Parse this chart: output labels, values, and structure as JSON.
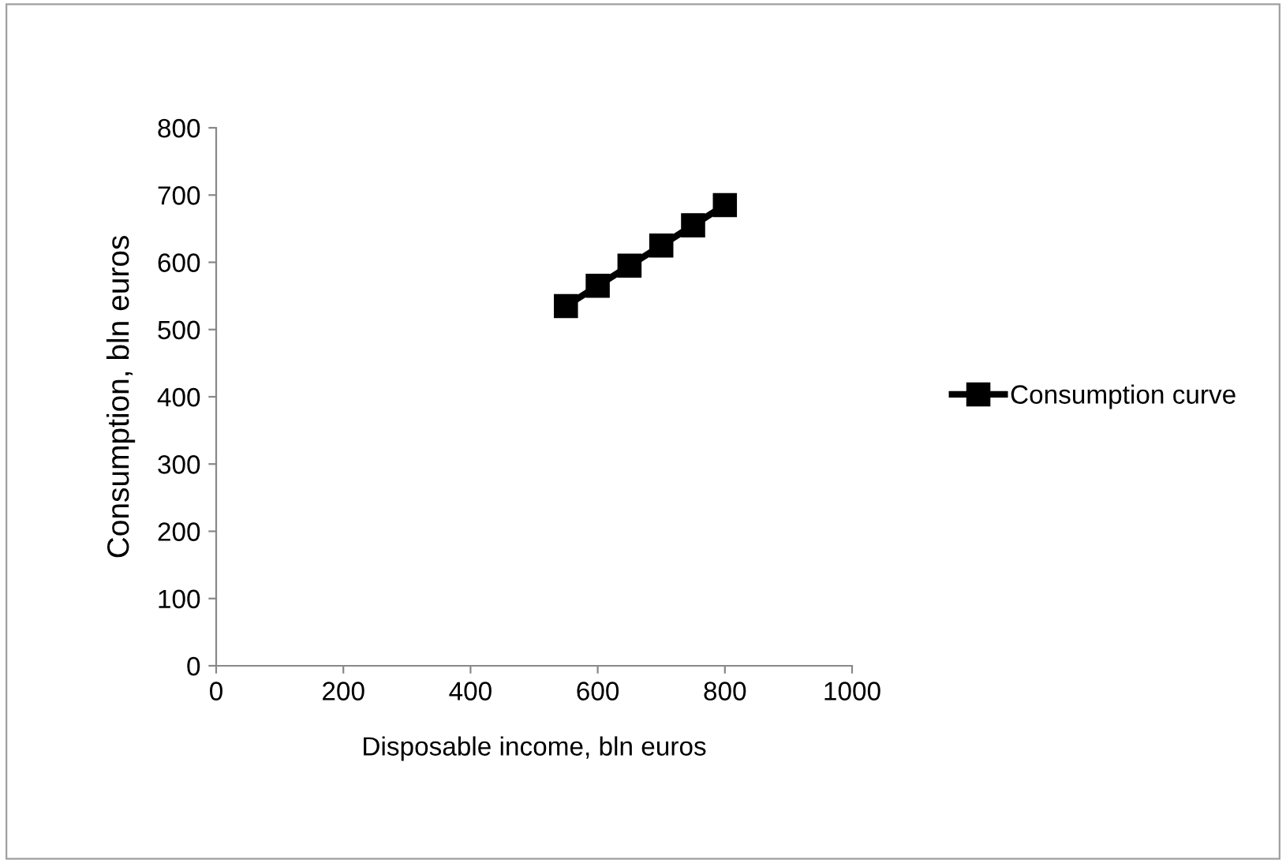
{
  "chart_data": {
    "type": "line",
    "xlabel": "Disposable income, bln euros",
    "ylabel": "Consumption, bln euros",
    "x": [
      550,
      600,
      650,
      700,
      750,
      800
    ],
    "series": [
      {
        "name": "Consumption curve",
        "color": "#000000",
        "values": [
          535,
          565,
          595,
          625,
          655,
          685
        ]
      }
    ],
    "xlim": [
      0,
      1000
    ],
    "xticks": [
      0,
      200,
      400,
      600,
      800,
      1000
    ],
    "ylim": [
      0,
      800
    ],
    "yticks": [
      0,
      100,
      200,
      300,
      400,
      500,
      600,
      700,
      800
    ],
    "grid": false,
    "legend": "right",
    "marker": "square",
    "line_style": "solid"
  }
}
